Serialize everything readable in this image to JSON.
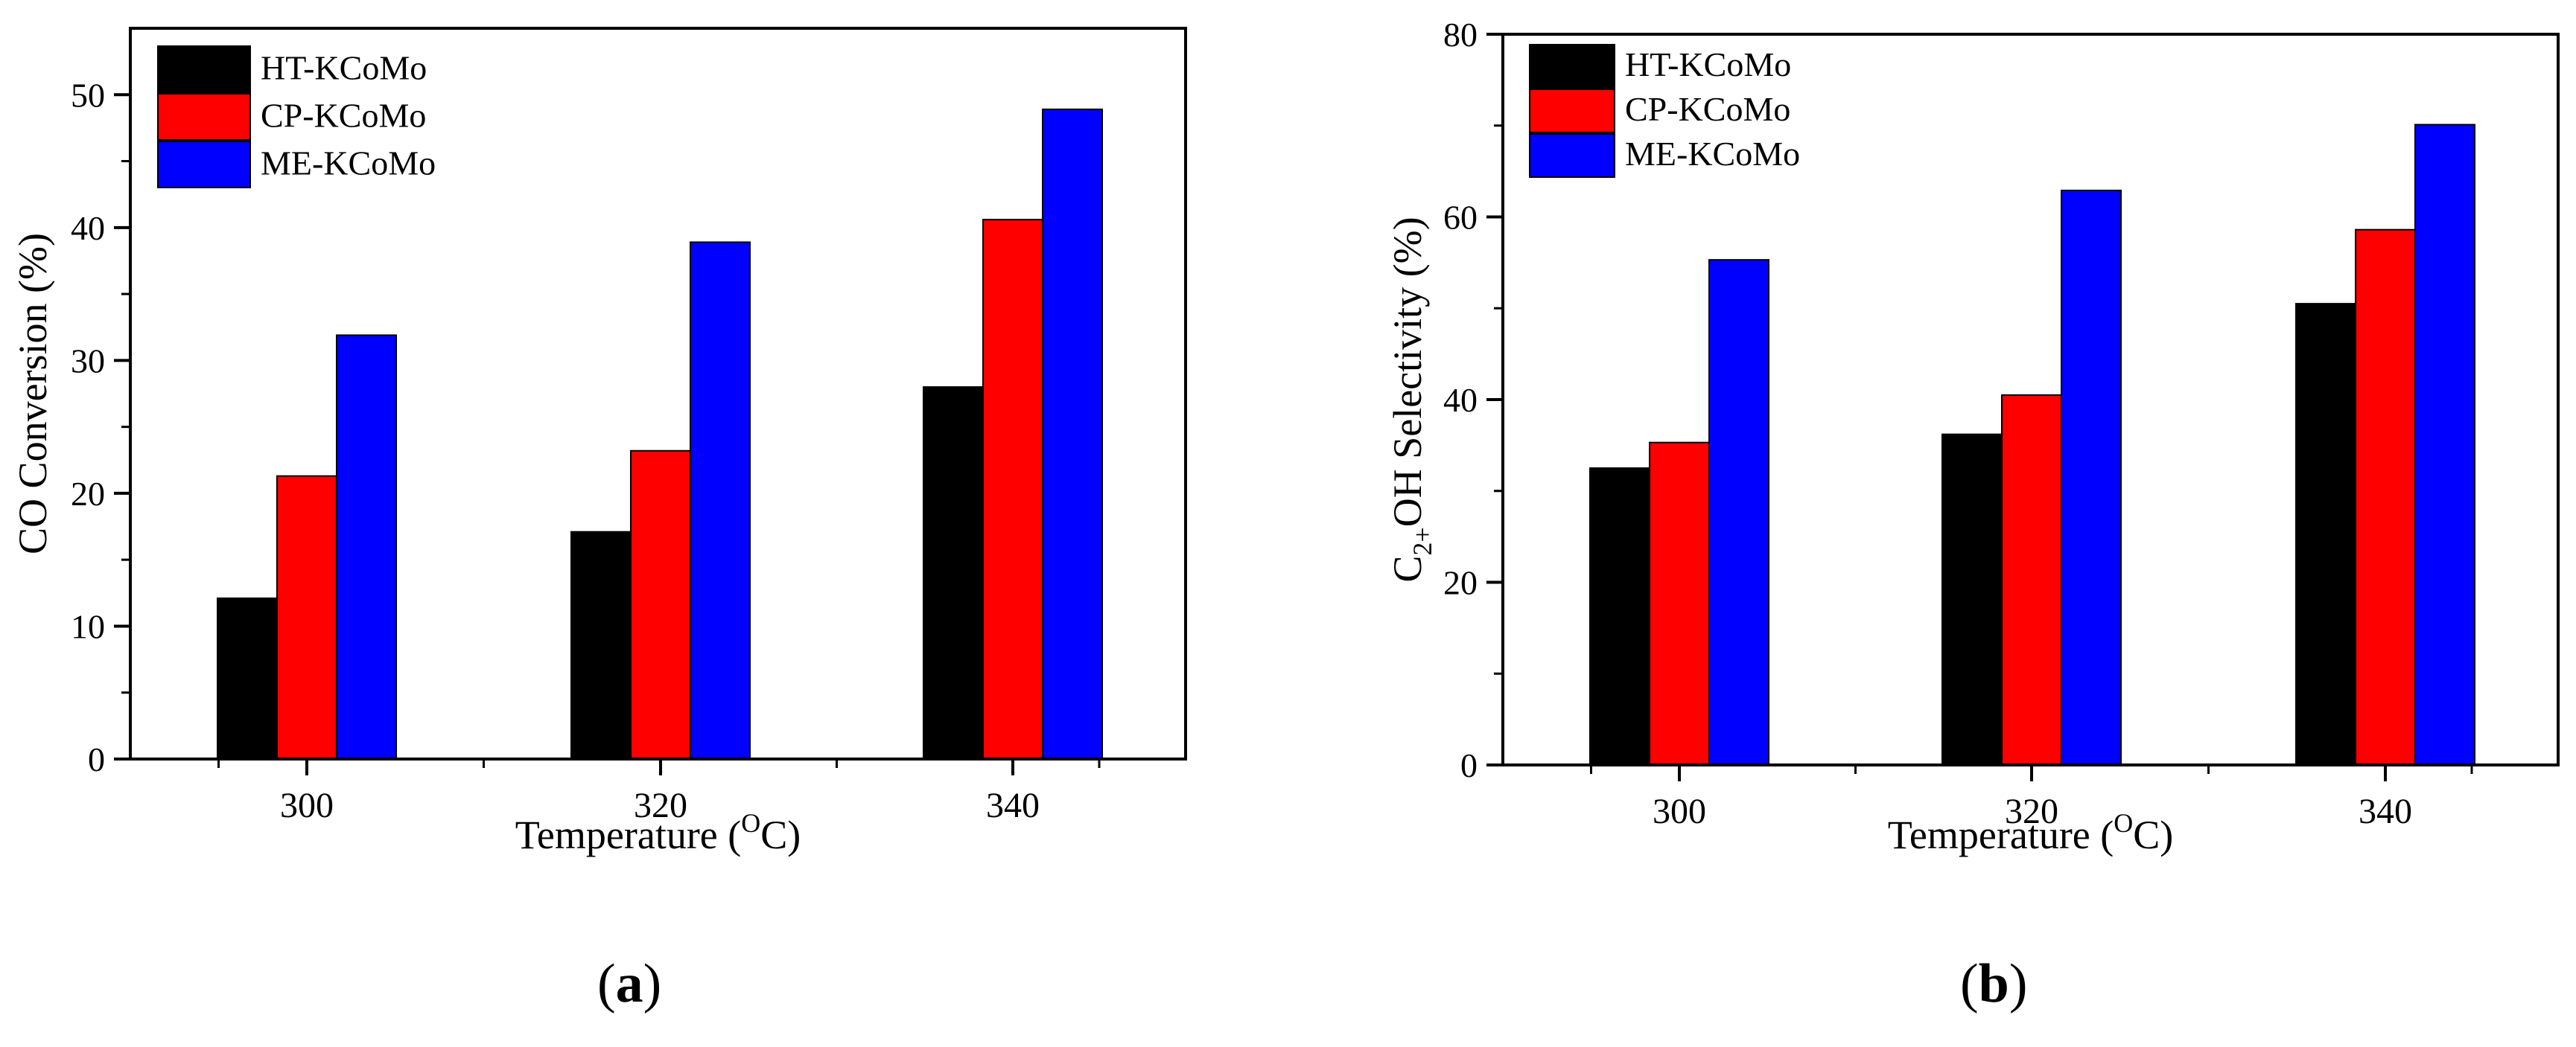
{
  "colors": {
    "HT-KCoMo": "#000000",
    "CP-KCoMo": "#ff0000",
    "ME-KCoMo": "#0000ff"
  },
  "chart_data": [
    {
      "type": "bar",
      "panel_label": "a",
      "title": "",
      "categories": [
        "300",
        "320",
        "340"
      ],
      "series": [
        {
          "name": "HT-KCoMo",
          "values": [
            12.1,
            17.1,
            28.0
          ]
        },
        {
          "name": "CP-KCoMo",
          "values": [
            21.3,
            23.2,
            40.6
          ]
        },
        {
          "name": "ME-KCoMo",
          "values": [
            31.9,
            38.9,
            48.9
          ]
        }
      ],
      "xlabel": "Temperature (",
      "xlabel_sup": "O",
      "xlabel_end": "C)",
      "ylabel": "CO Conversion (%)",
      "ylim": [
        0,
        55
      ],
      "yticks": [
        0,
        10,
        20,
        30,
        40,
        50
      ],
      "grid": false,
      "legend_position": "top-left"
    },
    {
      "type": "bar",
      "panel_label": "b",
      "title": "",
      "categories": [
        "300",
        "320",
        "340"
      ],
      "series": [
        {
          "name": "HT-KCoMo",
          "values": [
            32.5,
            36.2,
            50.5
          ]
        },
        {
          "name": "CP-KCoMo",
          "values": [
            35.3,
            40.5,
            58.6
          ]
        },
        {
          "name": "ME-KCoMo",
          "values": [
            55.3,
            62.9,
            70.1
          ]
        }
      ],
      "xlabel": "Temperature (",
      "xlabel_sup": "O",
      "xlabel_end": "C)",
      "ylabel_pre": "C",
      "ylabel_sub": "2+",
      "ylabel_post": "OH Selectivity (%)",
      "ylim": [
        0,
        80
      ],
      "yticks": [
        0,
        20,
        40,
        60,
        80
      ],
      "grid": false,
      "legend_position": "top-left"
    }
  ]
}
